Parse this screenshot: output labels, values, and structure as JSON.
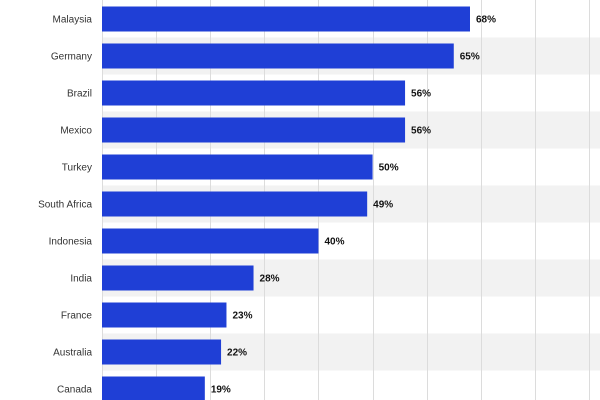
{
  "chart_data": {
    "type": "bar",
    "orientation": "horizontal",
    "categories": [
      "Malaysia",
      "Germany",
      "Brazil",
      "Mexico",
      "Turkey",
      "South Africa",
      "Indonesia",
      "India",
      "France",
      "Australia",
      "Canada"
    ],
    "values": [
      68,
      65,
      56,
      56,
      50,
      49,
      40,
      28,
      23,
      22,
      19
    ],
    "value_labels": [
      "68%",
      "65%",
      "56%",
      "56%",
      "50%",
      "49%",
      "40%",
      "28%",
      "23%",
      "22%",
      "19%"
    ],
    "title": "",
    "xlabel": "",
    "ylabel": "",
    "xlim": [
      0,
      90
    ],
    "grid": true,
    "legend": "none",
    "colors": {
      "bar": "#1f3fd6",
      "band": "#f2f2f2",
      "grid": "#dcdcdc",
      "background": "#ffffff"
    }
  }
}
